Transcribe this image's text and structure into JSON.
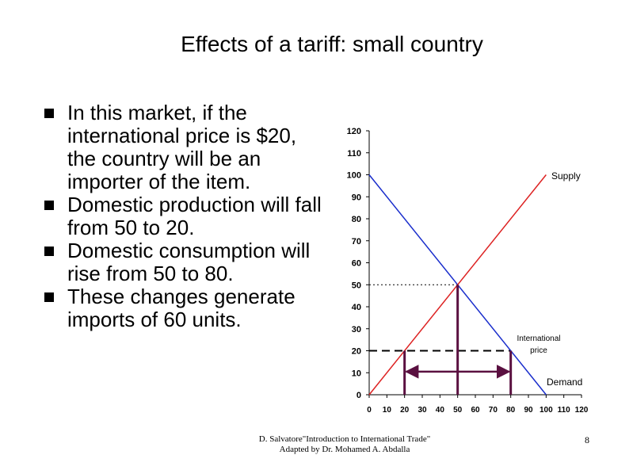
{
  "slide": {
    "title": "Effects of a tariff: small country",
    "bullets": [
      "In this market, if the international price is $20, the country will be an importer of the item.",
      "Domestic production will fall from 50 to 20.",
      "Domestic consumption will rise from 50 to 80.",
      "These changes generate imports of 60 units."
    ],
    "footer_line1": "D. Salvatore\"Introduction to International Trade\"",
    "footer_line2": "Adapted by Dr. Mohamed A. Abdalla",
    "page_number": "8"
  },
  "colors": {
    "supply": "#dd2222",
    "demand": "#1a2ecc",
    "imports_arrow": "#5a1040",
    "ink": "#000000"
  },
  "chart_data": {
    "type": "line",
    "title": "",
    "xlabel": "",
    "ylabel": "",
    "xlim": [
      0,
      120
    ],
    "ylim": [
      0,
      120
    ],
    "x_ticks": [
      0,
      10,
      20,
      30,
      40,
      50,
      60,
      70,
      80,
      90,
      100,
      110,
      120
    ],
    "y_ticks": [
      0,
      10,
      20,
      30,
      40,
      50,
      60,
      70,
      80,
      90,
      100,
      110,
      120
    ],
    "series": [
      {
        "name": "Supply",
        "label": "Supply",
        "x": [
          0,
          100
        ],
        "y": [
          0,
          100
        ]
      },
      {
        "name": "Demand",
        "label": "Demand",
        "x": [
          0,
          100
        ],
        "y": [
          100,
          0
        ]
      }
    ],
    "equilibrium": {
      "x": 50,
      "y": 50
    },
    "international_price": {
      "value": 20,
      "label_line1": "International",
      "label_line2": "price"
    },
    "domestic_production": 20,
    "domestic_consumption": 80,
    "imports": 60
  }
}
